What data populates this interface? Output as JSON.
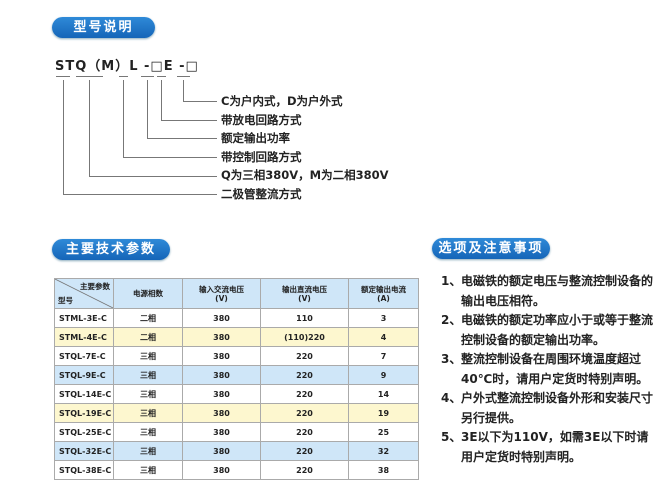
{
  "model_section": {
    "title": "型号说明",
    "code": "STQ（M）L -□E -□",
    "descriptions": [
      "C为户内式，D为户外式",
      "带放电回路方式",
      "额定输出功率",
      "带控制回路方式",
      "Q为三相380V，M为二相380V",
      "二极管整流方式"
    ]
  },
  "params_section": {
    "title": "主要技术参数",
    "header": {
      "corner_top": "主要参数",
      "corner_bottom": "型号",
      "cols": [
        "电源相数",
        "输入交流电压\n(V)",
        "输出直流电压\n(V)",
        "额定输出电流\n(A)"
      ]
    },
    "rows": [
      [
        "STML-3E-C",
        "二相",
        "380",
        "110",
        "3"
      ],
      [
        "STML-4E-C",
        "二相",
        "380",
        "(110)220",
        "4"
      ],
      [
        "STQL-7E-C",
        "三相",
        "380",
        "220",
        "7"
      ],
      [
        "STQL-9E-C",
        "三相",
        "380",
        "220",
        "9"
      ],
      [
        "STQL-14E-C",
        "三相",
        "380",
        "220",
        "14"
      ],
      [
        "STQL-19E-C",
        "三相",
        "380",
        "220",
        "19"
      ],
      [
        "STQL-25E-C",
        "三相",
        "380",
        "220",
        "25"
      ],
      [
        "STQL-32E-C",
        "三相",
        "380",
        "220",
        "32"
      ],
      [
        "STQL-38E-C",
        "三相",
        "380",
        "220",
        "38"
      ]
    ]
  },
  "notes_section": {
    "title": "选项及注意事项",
    "items": [
      {
        "n": "1、",
        "text": "电磁铁的额定电压与整流控制设备的输出电压相符。"
      },
      {
        "n": "2、",
        "text": "电磁铁的额定功率应小于或等于整流控制设备的额定输出功率。"
      },
      {
        "n": "3、",
        "text": "整流控制设备在周围环境温度超过40℃时，请用户定货时特别声明。"
      },
      {
        "n": "4、",
        "text": "户外式整流控制设备外形和安装尺寸另行提供。"
      },
      {
        "n": "5、",
        "text": "3E以下为110V，如需3E以下时请用户定货时特别声明。"
      }
    ]
  },
  "colors": {
    "pill": "#1a6fc4",
    "header_bg": "#cfe6f8",
    "highlight_yellow": "#fdf7cf"
  }
}
